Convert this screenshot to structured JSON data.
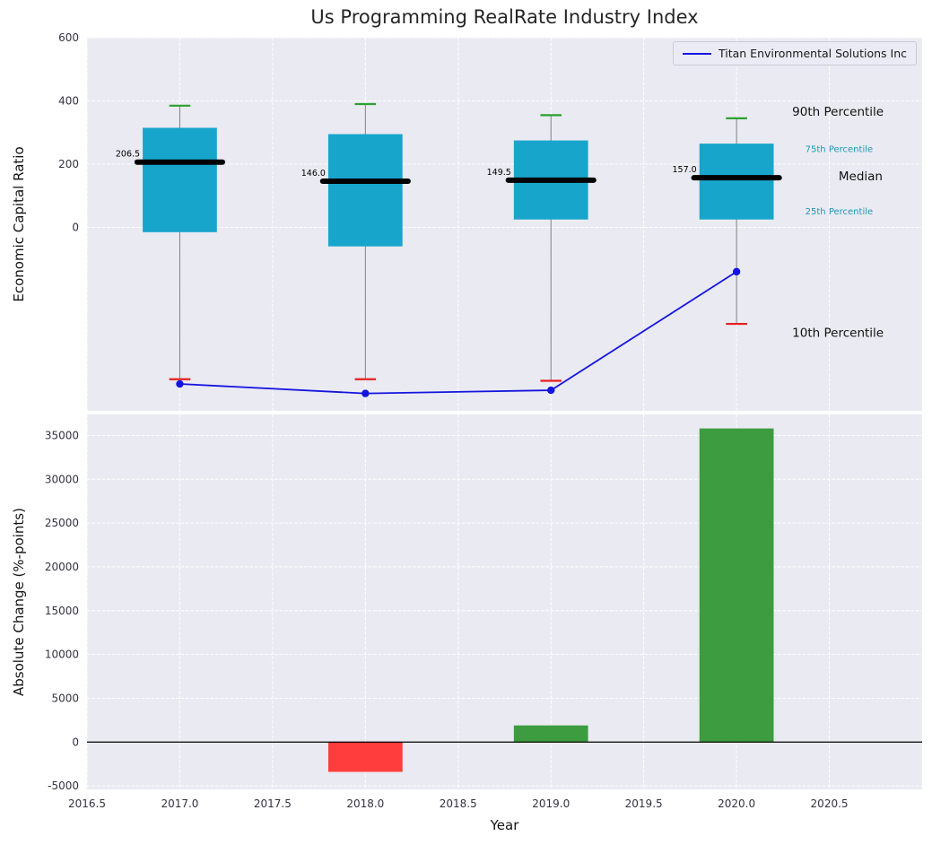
{
  "title": "Us Programming RealRate Industry Index",
  "legend": {
    "label": "Titan Environmental Solutions Inc",
    "line_color": "#1414e0"
  },
  "colors": {
    "figure_bg": "#ffffff",
    "axes_bg": "#eaeaf2",
    "grid": "#ffffff",
    "box_fill": "#18a5cc",
    "median": "#000000",
    "cap_high": "#2ca02c",
    "cap_low": "#e62020",
    "whisker": "#808080",
    "series_line": "#1414e0",
    "bar_positive": "#3d9c40",
    "bar_negative": "#ff3d3d",
    "tick_label": "#33333f",
    "zero_line": "#000000",
    "percentile_label": "#2095b8",
    "annotation_dark": "#111111"
  },
  "chart_data": [
    {
      "type": "box",
      "title": "Us Programming RealRate Industry Index",
      "ylabel": "Economic Capital Ratio",
      "xlim": [
        2016.5,
        2021.0
      ],
      "ylim": [
        -580,
        600
      ],
      "yticks": [
        0,
        200,
        400,
        600
      ],
      "grid": true,
      "legend_position": "upper right",
      "box_width": 0.4,
      "boxes": [
        {
          "year": 2017,
          "p90": 385,
          "p75": 315,
          "median": 206.5,
          "p25": -15,
          "p10": -480,
          "label": "206.5"
        },
        {
          "year": 2018,
          "p90": 390,
          "p75": 295,
          "median": 146.0,
          "p25": -60,
          "p10": -480,
          "label": "146.0"
        },
        {
          "year": 2019,
          "p90": 355,
          "p75": 275,
          "median": 149.5,
          "p25": 25,
          "p10": -485,
          "label": "149.5"
        },
        {
          "year": 2020,
          "p90": 345,
          "p75": 265,
          "median": 157.0,
          "p25": 25,
          "p10": -305,
          "label": "157.0"
        }
      ],
      "series": [
        {
          "name": "Titan Environmental Solutions Inc",
          "x": [
            2017,
            2018,
            2019,
            2020
          ],
          "y": [
            -495,
            -525,
            -515,
            -140
          ]
        }
      ],
      "annotations": [
        {
          "text": "90th Percentile",
          "x": 2020.3,
          "y": 365,
          "color": "#111111",
          "size": 13.5
        },
        {
          "text": "75th Percentile",
          "x": 2020.37,
          "y": 245,
          "color": "#2095b8",
          "size": 10
        },
        {
          "text": "Median",
          "x": 2020.55,
          "y": 160,
          "color": "#111111",
          "size": 13.5
        },
        {
          "text": "25th Percentile",
          "x": 2020.37,
          "y": 48,
          "color": "#2095b8",
          "size": 10
        },
        {
          "text": "10th Percentile",
          "x": 2020.3,
          "y": -335,
          "color": "#111111",
          "size": 13.5
        }
      ]
    },
    {
      "type": "bar",
      "xlabel": "Year",
      "ylabel": "Absolute Change (%-points)",
      "xlim": [
        2016.5,
        2021.0
      ],
      "ylim": [
        -5400,
        37400
      ],
      "xticks": [
        2016.5,
        2017.0,
        2017.5,
        2018.0,
        2018.5,
        2019.0,
        2019.5,
        2020.0,
        2020.5
      ],
      "yticks": [
        -5000,
        0,
        5000,
        10000,
        15000,
        20000,
        25000,
        30000,
        35000
      ],
      "grid": true,
      "bar_width": 0.4,
      "categories": [
        2017,
        2018,
        2019,
        2020
      ],
      "values": [
        null,
        -3400,
        1900,
        35800
      ],
      "bar_colors": [
        null,
        "#ff3d3d",
        "#3d9c40",
        "#3d9c40"
      ]
    }
  ]
}
